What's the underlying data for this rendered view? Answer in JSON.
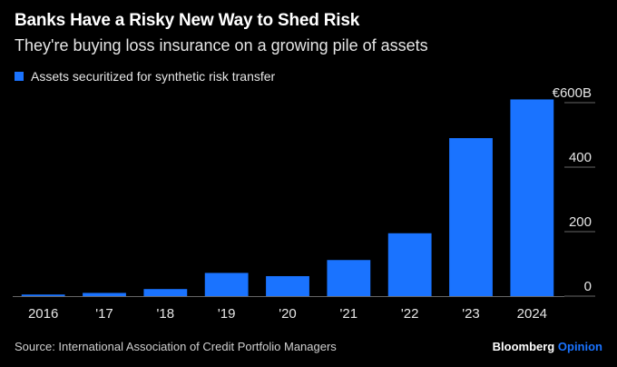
{
  "header": {
    "title": "Banks Have a Risky New Way to Shed Risk",
    "subtitle": "They're buying loss insurance on a growing pile of assets"
  },
  "footer": {
    "source": "Source: International Association of Credit Portfolio Managers",
    "brand_main": "Bloomberg",
    "brand_opinion": "Opinion"
  },
  "colors": {
    "bar": "#1a73ff",
    "background": "#000000",
    "axis": "#666666"
  },
  "chart_data": {
    "type": "bar",
    "categories": [
      "2016",
      "'17",
      "'18",
      "'19",
      "'20",
      "'21",
      "'22",
      "'23",
      "2024"
    ],
    "series": [
      {
        "name": "Assets securitized for synthetic risk transfer",
        "values": [
          5,
          10,
          22,
          72,
          62,
          112,
          195,
          490,
          610
        ]
      }
    ],
    "ylim": [
      0,
      600
    ],
    "yticks": [
      0,
      200,
      400,
      600
    ],
    "ytick_labels": [
      "0",
      "200",
      "400",
      "€600B"
    ],
    "yaxis_side": "right",
    "grid": false,
    "legend_position": "top-left"
  }
}
